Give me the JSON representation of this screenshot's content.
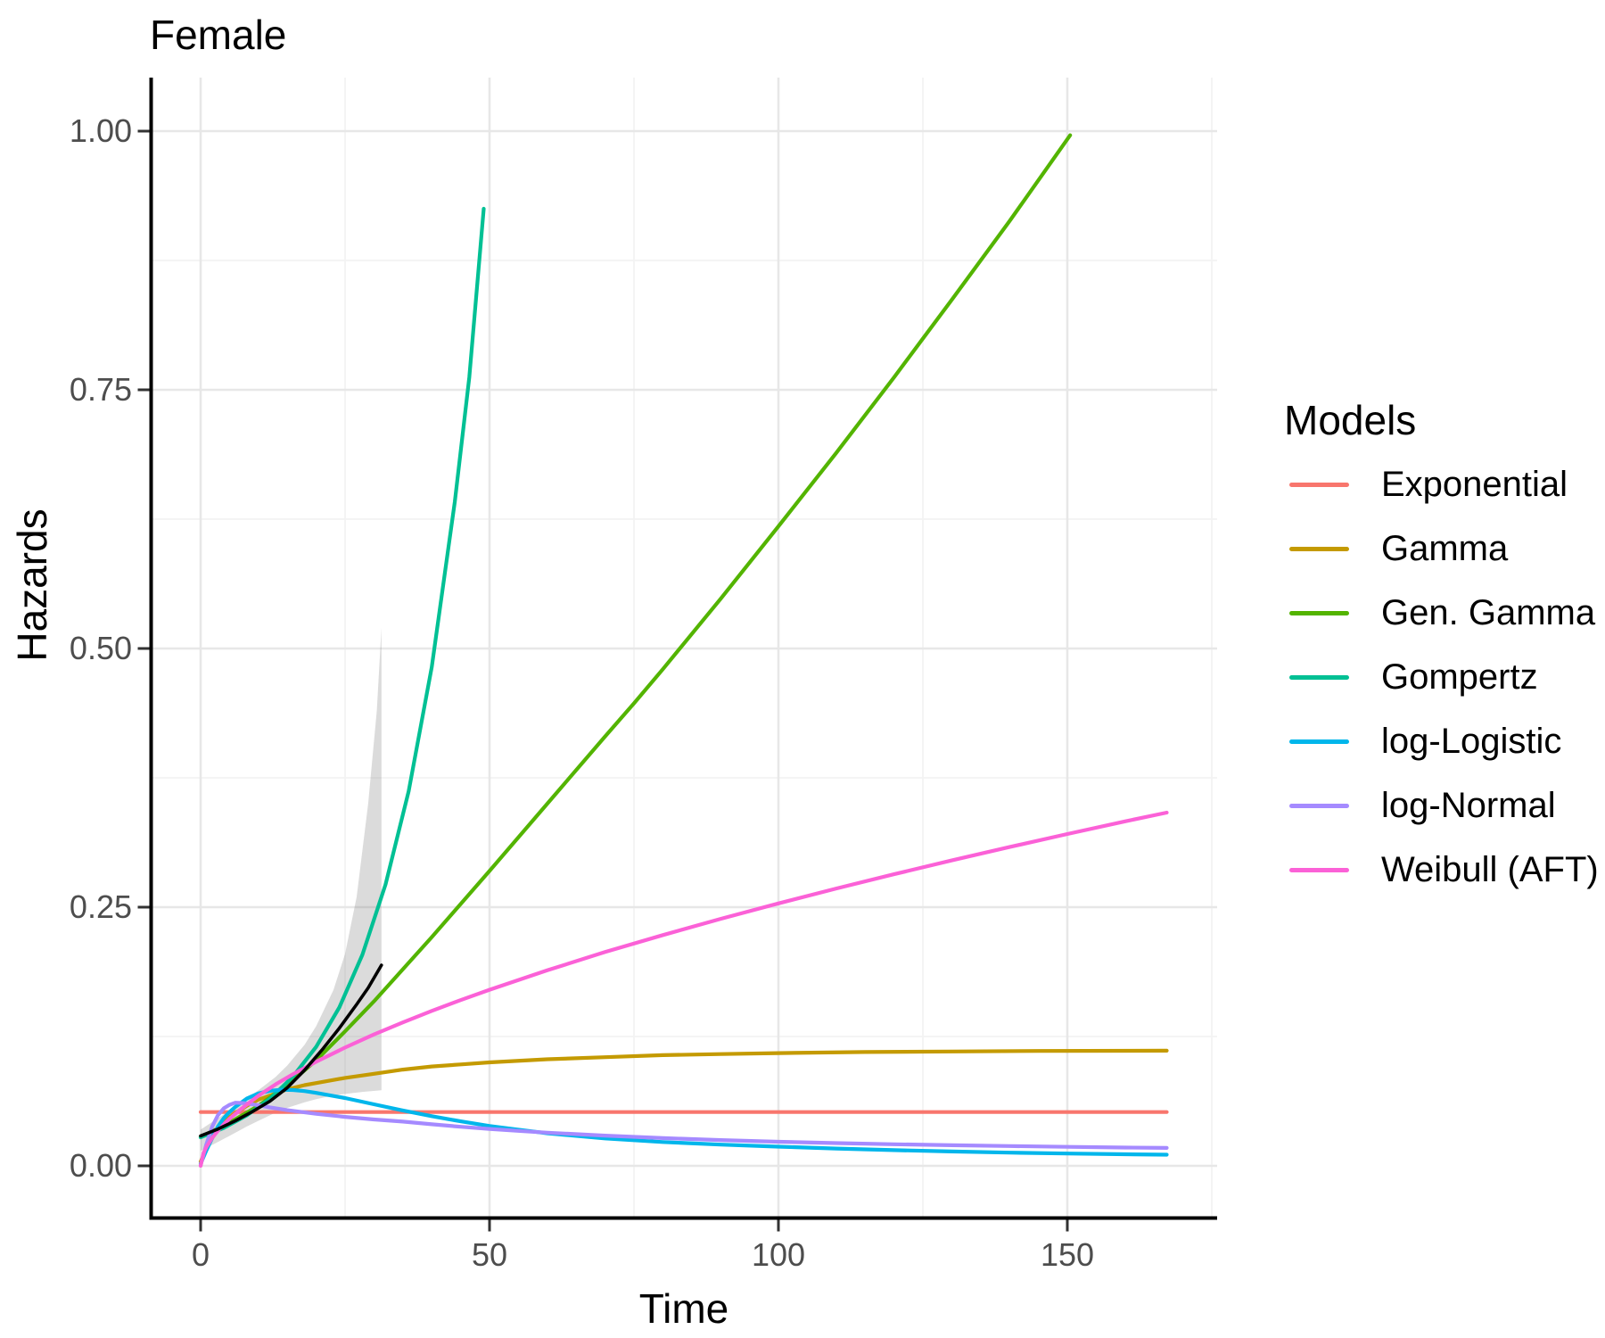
{
  "title": "Female",
  "axes": {
    "x_label": "Time",
    "y_label": "Hazards"
  },
  "legend": {
    "title": "Models",
    "position": "right"
  },
  "colors": {
    "axis_line": "#000000",
    "tick_mark": "#333333",
    "tick_label": "#4d4d4d",
    "grid_major": "#e7e7e7",
    "grid_minor": "#f3f3f3",
    "band_fill": "#7f7f7f"
  },
  "chart_data": {
    "type": "line",
    "title": "Female",
    "xlabel": "Time",
    "ylabel": "Hazards",
    "xlim": [
      0,
      167.2
    ],
    "ylim": [
      0,
      1.0
    ],
    "grid": true,
    "legend_position": "right",
    "legend_title": "Models",
    "x_ticks": [
      {
        "value": 0,
        "label": "0"
      },
      {
        "value": 50,
        "label": "50"
      },
      {
        "value": 100,
        "label": "100"
      },
      {
        "value": 150,
        "label": "150"
      }
    ],
    "x_minor_ticks": [
      25,
      75,
      125,
      175
    ],
    "y_ticks": [
      {
        "value": 0,
        "label": "0.00"
      },
      {
        "value": 0.25,
        "label": "0.25"
      },
      {
        "value": 0.5,
        "label": "0.50"
      },
      {
        "value": 0.75,
        "label": "0.75"
      },
      {
        "value": 1.0,
        "label": "1.00"
      }
    ],
    "y_minor_ticks": [
      0.125,
      0.375,
      0.625,
      0.875
    ],
    "series": [
      {
        "name": "Exponential",
        "color": "#F8766D",
        "points": [
          [
            0,
            0.052
          ],
          [
            167.2,
            0.052
          ]
        ]
      },
      {
        "name": "Gamma",
        "color": "#C49A00",
        "points": [
          [
            0,
            0.004
          ],
          [
            1,
            0.016
          ],
          [
            2,
            0.027
          ],
          [
            3,
            0.035
          ],
          [
            4,
            0.042
          ],
          [
            5,
            0.047
          ],
          [
            6,
            0.051
          ],
          [
            8,
            0.058
          ],
          [
            10,
            0.064
          ],
          [
            12,
            0.068
          ],
          [
            15,
            0.074
          ],
          [
            18,
            0.078
          ],
          [
            20,
            0.08
          ],
          [
            25,
            0.085
          ],
          [
            30,
            0.089
          ],
          [
            35,
            0.093
          ],
          [
            40,
            0.096
          ],
          [
            45,
            0.098
          ],
          [
            50,
            0.1
          ],
          [
            60,
            0.103
          ],
          [
            70,
            0.105
          ],
          [
            80,
            0.107
          ],
          [
            90,
            0.108
          ],
          [
            100,
            0.109
          ],
          [
            115,
            0.11
          ],
          [
            130,
            0.1105
          ],
          [
            145,
            0.111
          ],
          [
            167.2,
            0.1113
          ]
        ]
      },
      {
        "name": "Gen. Gamma",
        "color": "#53B400",
        "points": [
          [
            0,
            0.028
          ],
          [
            3,
            0.036
          ],
          [
            6,
            0.045
          ],
          [
            10,
            0.058
          ],
          [
            15,
            0.078
          ],
          [
            20,
            0.102
          ],
          [
            25,
            0.13
          ],
          [
            30,
            0.159
          ],
          [
            35,
            0.19
          ],
          [
            40,
            0.221
          ],
          [
            45,
            0.253
          ],
          [
            50,
            0.285
          ],
          [
            60,
            0.35
          ],
          [
            70,
            0.415
          ],
          [
            75,
            0.447
          ],
          [
            80,
            0.48
          ],
          [
            90,
            0.548
          ],
          [
            100,
            0.618
          ],
          [
            110,
            0.689
          ],
          [
            120,
            0.762
          ],
          [
            130,
            0.837
          ],
          [
            140,
            0.913
          ],
          [
            150.5,
            0.996
          ]
        ]
      },
      {
        "name": "Gompertz",
        "color": "#00C094",
        "points": [
          [
            0,
            0.0275
          ],
          [
            4,
            0.0366
          ],
          [
            8,
            0.0488
          ],
          [
            12,
            0.0649
          ],
          [
            16,
            0.0865
          ],
          [
            20,
            0.115
          ],
          [
            24,
            0.153
          ],
          [
            28,
            0.204
          ],
          [
            32,
            0.272
          ],
          [
            36,
            0.362
          ],
          [
            40,
            0.482
          ],
          [
            44,
            0.642
          ],
          [
            46.5,
            0.762
          ],
          [
            49,
            0.925
          ]
        ]
      },
      {
        "name": "log-Logistic",
        "color": "#00B6EB",
        "points": [
          [
            0,
            0.002
          ],
          [
            1,
            0.015
          ],
          [
            2,
            0.027
          ],
          [
            3,
            0.038
          ],
          [
            4,
            0.046
          ],
          [
            5,
            0.052
          ],
          [
            6,
            0.057
          ],
          [
            8,
            0.065
          ],
          [
            10,
            0.07
          ],
          [
            12,
            0.0725
          ],
          [
            14,
            0.0735
          ],
          [
            16,
            0.0733
          ],
          [
            18,
            0.0722
          ],
          [
            20,
            0.0705
          ],
          [
            25,
            0.0655
          ],
          [
            30,
            0.0595
          ],
          [
            35,
            0.0535
          ],
          [
            40,
            0.048
          ],
          [
            45,
            0.043
          ],
          [
            50,
            0.0385
          ],
          [
            55,
            0.035
          ],
          [
            60,
            0.0315
          ],
          [
            70,
            0.0265
          ],
          [
            80,
            0.023
          ],
          [
            90,
            0.0205
          ],
          [
            100,
            0.0185
          ],
          [
            110,
            0.0167
          ],
          [
            120,
            0.0152
          ],
          [
            130,
            0.0139
          ],
          [
            140,
            0.0128
          ],
          [
            150,
            0.0119
          ],
          [
            160,
            0.0112
          ],
          [
            167.2,
            0.0108
          ]
        ]
      },
      {
        "name": "log-Normal",
        "color": "#A58AFF",
        "points": [
          [
            0,
            0.0005
          ],
          [
            1,
            0.021
          ],
          [
            2,
            0.038
          ],
          [
            3,
            0.049
          ],
          [
            4,
            0.0555
          ],
          [
            5,
            0.059
          ],
          [
            6,
            0.061
          ],
          [
            7,
            0.0608
          ],
          [
            8,
            0.0603
          ],
          [
            10,
            0.0585
          ],
          [
            12,
            0.0565
          ],
          [
            15,
            0.0538
          ],
          [
            20,
            0.0503
          ],
          [
            25,
            0.0473
          ],
          [
            30,
            0.0448
          ],
          [
            35,
            0.0428
          ],
          [
            40,
            0.0402
          ],
          [
            45,
            0.0378
          ],
          [
            50,
            0.0357
          ],
          [
            55,
            0.0338
          ],
          [
            60,
            0.0321
          ],
          [
            70,
            0.0292
          ],
          [
            80,
            0.0268
          ],
          [
            90,
            0.0249
          ],
          [
            100,
            0.0233
          ],
          [
            110,
            0.022
          ],
          [
            120,
            0.0209
          ],
          [
            130,
            0.0199
          ],
          [
            140,
            0.0191
          ],
          [
            150,
            0.0184
          ],
          [
            160,
            0.0177
          ],
          [
            167.2,
            0.0173
          ]
        ]
      },
      {
        "name": "Weibull (AFT)",
        "color": "#FB61D7",
        "points": [
          [
            0,
            0
          ],
          [
            0.5,
            0.0122
          ],
          [
            1,
            0.0182
          ],
          [
            2,
            0.0271
          ],
          [
            3,
            0.034
          ],
          [
            4,
            0.0401
          ],
          [
            5,
            0.0455
          ],
          [
            7,
            0.0549
          ],
          [
            10,
            0.0678
          ],
          [
            13,
            0.0788
          ],
          [
            16,
            0.0886
          ],
          [
            20,
            0.1006
          ],
          [
            25,
            0.1143
          ],
          [
            30,
            0.127
          ],
          [
            35,
            0.1386
          ],
          [
            40,
            0.1497
          ],
          [
            45,
            0.1602
          ],
          [
            50,
            0.1702
          ],
          [
            60,
            0.189
          ],
          [
            70,
            0.2066
          ],
          [
            80,
            0.223
          ],
          [
            90,
            0.2387
          ],
          [
            100,
            0.2536
          ],
          [
            110,
            0.268
          ],
          [
            120,
            0.2818
          ],
          [
            130,
            0.2952
          ],
          [
            140,
            0.3081
          ],
          [
            150,
            0.3207
          ],
          [
            160,
            0.3329
          ],
          [
            167.2,
            0.3414
          ]
        ]
      }
    ],
    "observed": {
      "name": "observed-hazard-black-line",
      "color": "#000000",
      "points": [
        [
          0,
          0.029
        ],
        [
          3,
          0.0355
        ],
        [
          6,
          0.0435
        ],
        [
          9,
          0.0525
        ],
        [
          12,
          0.0625
        ],
        [
          15,
          0.0755
        ],
        [
          18,
          0.0925
        ],
        [
          21,
          0.112
        ],
        [
          24,
          0.133
        ],
        [
          27,
          0.156
        ],
        [
          29,
          0.172
        ],
        [
          31.3,
          0.194
        ]
      ]
    },
    "confidence_band": {
      "color": "#7f7f7f",
      "opacity": 0.28,
      "lower": [
        [
          0,
          0.0145
        ],
        [
          3,
          0.023
        ],
        [
          5,
          0.029
        ],
        [
          8,
          0.038
        ],
        [
          10,
          0.0435
        ],
        [
          13,
          0.0515
        ],
        [
          15,
          0.056
        ],
        [
          18,
          0.0615
        ],
        [
          20,
          0.0645
        ],
        [
          23,
          0.068
        ],
        [
          25,
          0.0695
        ],
        [
          28,
          0.0715
        ],
        [
          31.3,
          0.073
        ]
      ],
      "upper": [
        [
          0,
          0.035
        ],
        [
          3,
          0.046
        ],
        [
          5,
          0.0535
        ],
        [
          8,
          0.065
        ],
        [
          10,
          0.073
        ],
        [
          13,
          0.086
        ],
        [
          15,
          0.097
        ],
        [
          18,
          0.117
        ],
        [
          20,
          0.135
        ],
        [
          23,
          0.17
        ],
        [
          25,
          0.205
        ],
        [
          27,
          0.26
        ],
        [
          29,
          0.35
        ],
        [
          30.5,
          0.44
        ],
        [
          31.3,
          0.52
        ]
      ]
    }
  }
}
